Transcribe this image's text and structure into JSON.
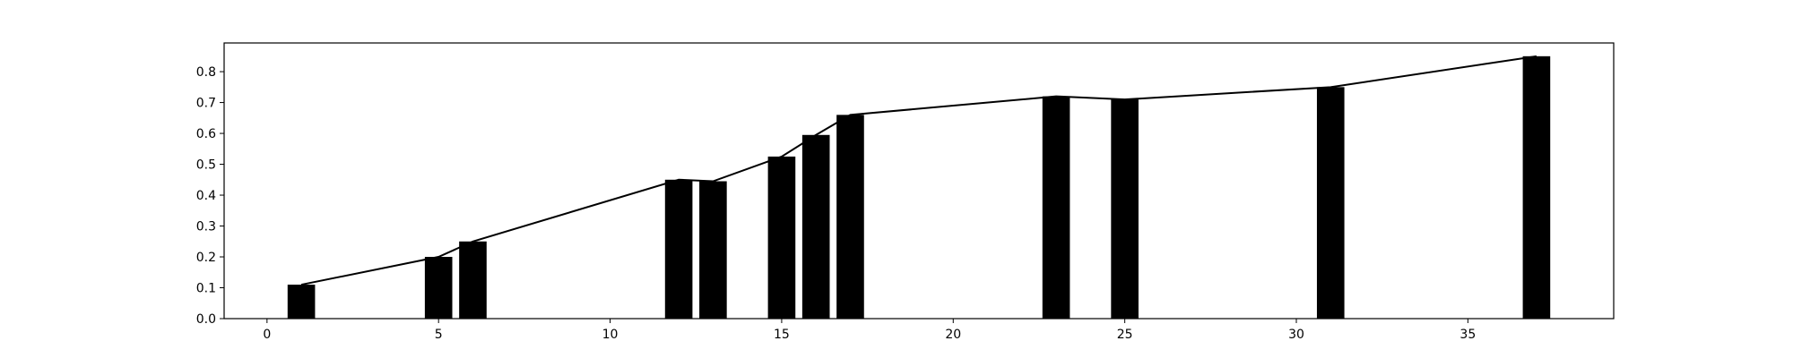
{
  "chart_data": {
    "type": "bar",
    "title": "",
    "xlabel": "",
    "ylabel": "",
    "xlim": [
      -1.25,
      39.25
    ],
    "ylim": [
      0,
      0.893
    ],
    "x_ticks": [
      0,
      5,
      10,
      15,
      20,
      25,
      30,
      35
    ],
    "y_ticks": [
      0.0,
      0.1,
      0.2,
      0.3,
      0.4,
      0.5,
      0.6,
      0.7,
      0.8
    ],
    "grid": false,
    "bar_width": 0.8,
    "bar_color": "#000000",
    "line_color": "#000000",
    "series": [
      {
        "x": [
          1,
          5,
          6,
          12,
          13,
          15,
          16,
          17,
          23,
          25,
          31,
          37
        ],
        "values": [
          0.11,
          0.2,
          0.25,
          0.45,
          0.445,
          0.525,
          0.595,
          0.66,
          0.72,
          0.71,
          0.75,
          0.85
        ]
      }
    ]
  }
}
